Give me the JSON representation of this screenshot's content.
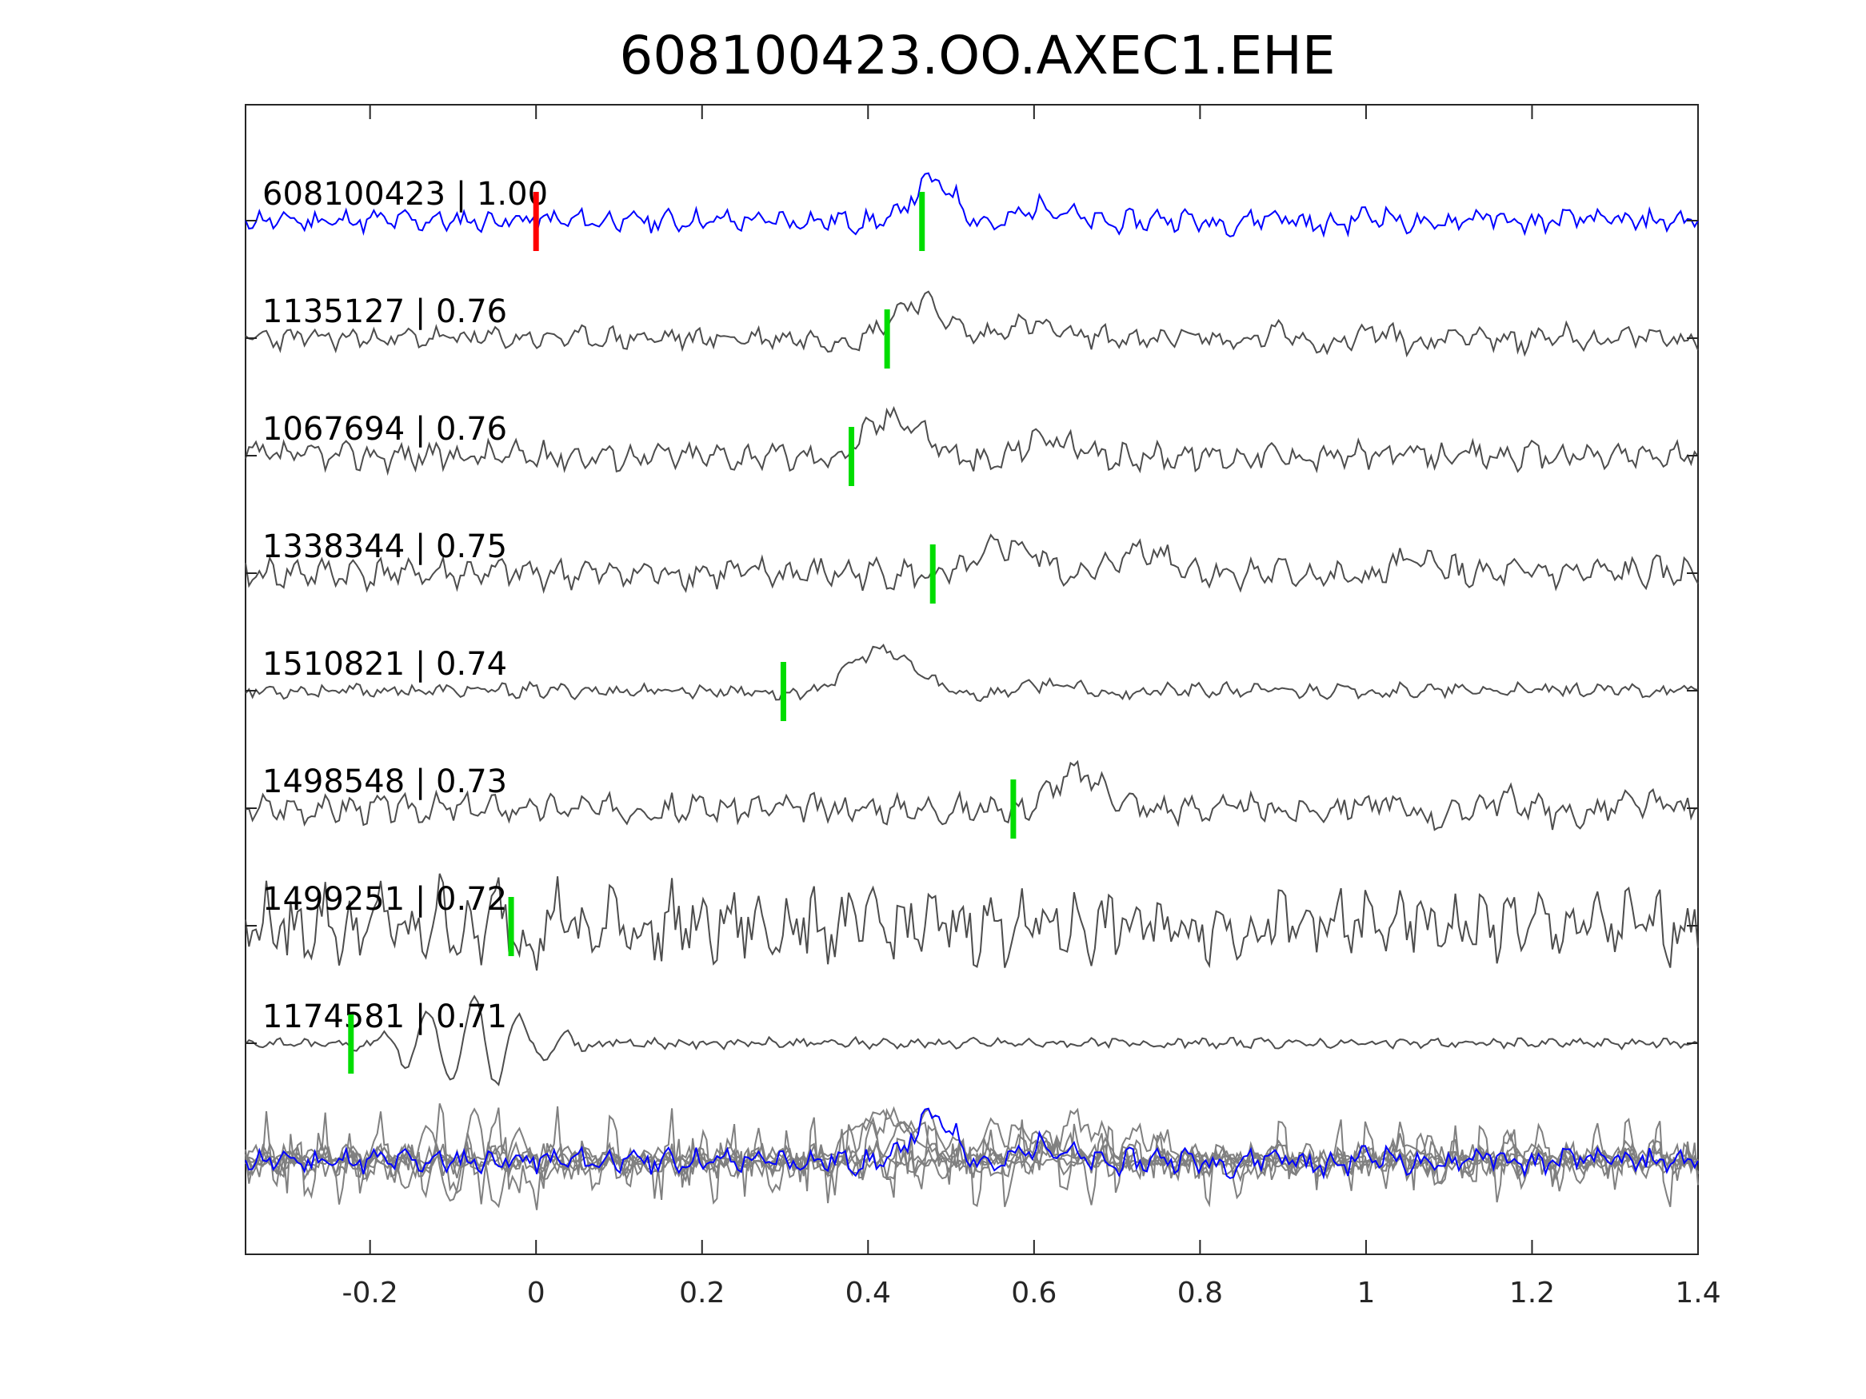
{
  "chart_data": {
    "type": "line",
    "title": "608100423.OO.AXEC1.EHE",
    "xlabel": "",
    "ylabel": "",
    "xlim": [
      -0.35,
      1.4
    ],
    "x_ticks": [
      -0.2,
      0,
      0.2,
      0.4,
      0.6,
      0.8,
      1,
      1.2,
      1.4
    ],
    "x_tick_labels": [
      "-0.2",
      "0",
      "0.2",
      "0.4",
      "0.6",
      "0.8",
      "1",
      "1.2",
      "1.4"
    ],
    "y_ticks_visible": false,
    "grid": false,
    "colors": {
      "template": "#0000ff",
      "detection": "#4d4d4d",
      "stack": "#808080",
      "origin_pick": "#ff0000",
      "arrival_pick": "#00dd00",
      "axes": "#262626"
    },
    "traces": [
      {
        "id": "608100423",
        "cc": "1.00",
        "label": "608100423 | 1.00",
        "pick": 0.465,
        "origin": 0.0,
        "role": "template",
        "seed": 11,
        "noise": 0.22,
        "pulses": [
          [
            0.47,
            0.045,
            1.0,
            3.2
          ],
          [
            0.6,
            0.06,
            0.35,
            5.0
          ],
          [
            1.0,
            0.25,
            0.12,
            8.0
          ]
        ]
      },
      {
        "id": "1135127",
        "cc": "0.76",
        "label": "1135127 | 0.76",
        "pick": 0.423,
        "role": "detection",
        "seed": 23,
        "noise": 0.22,
        "pulses": [
          [
            0.45,
            0.06,
            0.95,
            2.6
          ],
          [
            0.58,
            0.07,
            0.35,
            4.0
          ],
          [
            1.0,
            0.3,
            0.15,
            9.0
          ]
        ]
      },
      {
        "id": "1067694",
        "cc": "0.76",
        "label": "1067694 | 0.76",
        "pick": 0.38,
        "role": "detection",
        "seed": 37,
        "noise": 0.28,
        "pulses": [
          [
            0.42,
            0.06,
            1.0,
            2.6
          ],
          [
            0.6,
            0.07,
            0.45,
            5.0
          ]
        ]
      },
      {
        "id": "1338344",
        "cc": "0.75",
        "label": "1338344 | 0.75",
        "pick": 0.478,
        "role": "detection",
        "seed": 41,
        "noise": 0.3,
        "pulses": [
          [
            0.56,
            0.06,
            0.7,
            3.0
          ],
          [
            0.72,
            0.06,
            0.6,
            3.2
          ],
          [
            1.05,
            0.08,
            0.3,
            5.0
          ]
        ]
      },
      {
        "id": "1510821",
        "cc": "0.74",
        "label": "1510821 | 0.74",
        "pick": 0.298,
        "role": "detection",
        "seed": 53,
        "noise": 0.14,
        "pulses": [
          [
            0.4,
            0.07,
            1.0,
            2.4
          ],
          [
            0.6,
            0.1,
            0.15,
            5.0
          ]
        ]
      },
      {
        "id": "1498548",
        "cc": "0.73",
        "label": "1498548 | 0.73",
        "pick": 0.575,
        "role": "detection",
        "seed": 67,
        "noise": 0.28,
        "pulses": [
          [
            0.64,
            0.06,
            0.85,
            3.0
          ],
          [
            1.15,
            0.2,
            0.2,
            6.0
          ]
        ]
      },
      {
        "id": "1499251",
        "cc": "0.72",
        "label": "1499251 | 0.72",
        "pick": -0.03,
        "role": "detection",
        "seed": 79,
        "noise": 0.7,
        "pulses": [
          [
            -0.05,
            0.25,
            0.35,
            14.0
          ]
        ]
      },
      {
        "id": "1174581",
        "cc": "0.71",
        "label": "1174581 | 0.71",
        "pick": -0.223,
        "role": "detection",
        "seed": 83,
        "noise": 0.1,
        "pulses": [
          [
            -0.08,
            0.09,
            1.0,
            18.0
          ]
        ]
      }
    ],
    "stack_label": ""
  }
}
